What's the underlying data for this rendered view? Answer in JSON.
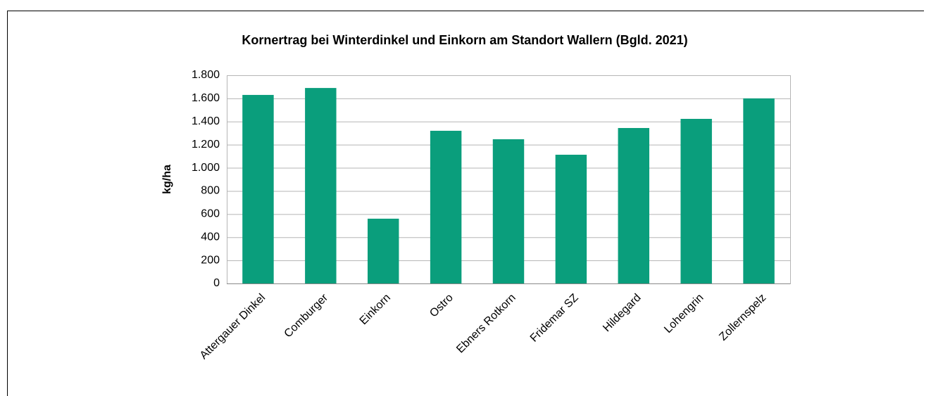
{
  "chart_data": {
    "type": "bar",
    "title": "Kornertrag bei Winterdinkel und Einkorn am Standort Wallern (Bgld. 2021)",
    "y_label": "kg/ha",
    "categories": [
      "Attergauer Dinkel",
      "Comburger",
      "Einkorn",
      "Ostro",
      "Ebners Rotkorn",
      "Fridemar SZ",
      "Hildegard",
      "Lohengrin",
      "Zollernspelz"
    ],
    "values": [
      1630,
      1690,
      560,
      1320,
      1247,
      1113,
      1344,
      1423,
      1600
    ],
    "color": "#0a9e7c",
    "ylim": [
      0,
      1800
    ],
    "yticks": [
      0,
      200,
      400,
      600,
      800,
      {
        "value": 1000,
        "label": "1.000"
      },
      {
        "value": 1200,
        "label": "1.200"
      },
      {
        "value": 1400,
        "label": "1.400"
      },
      {
        "value": 1600,
        "label": "1.600"
      },
      {
        "value": 1800,
        "label": "1.800"
      }
    ],
    "grid": true
  }
}
